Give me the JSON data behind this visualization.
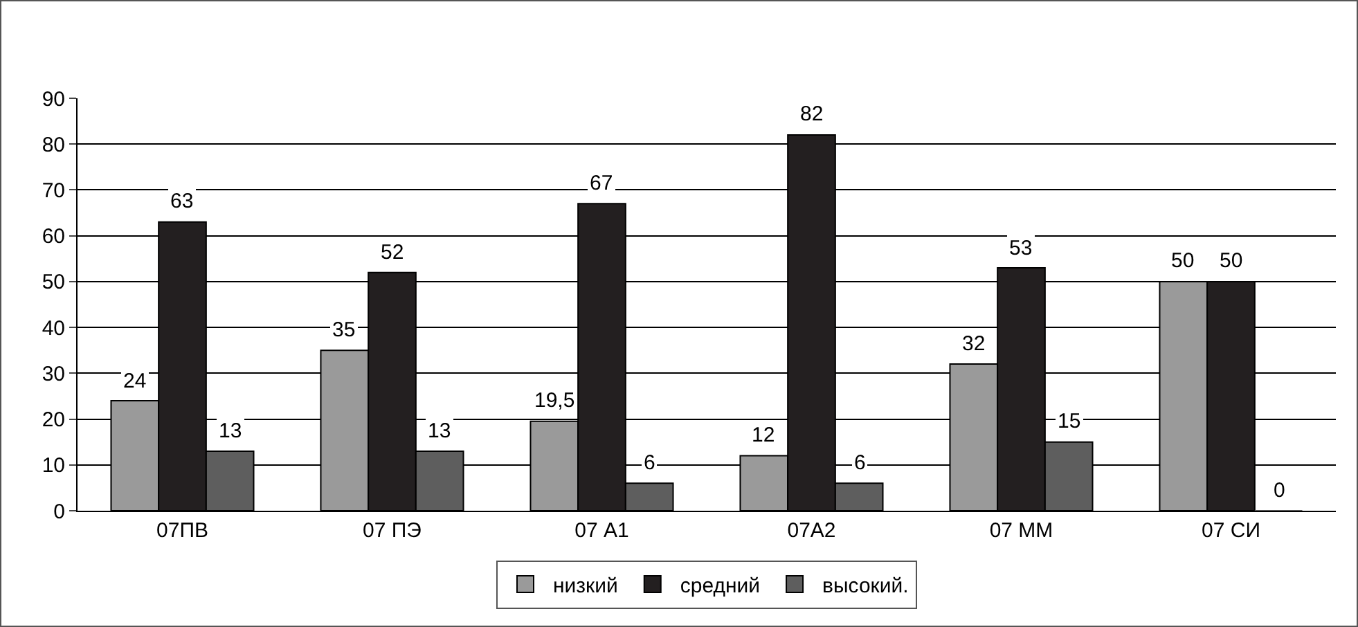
{
  "chart_data": {
    "type": "bar",
    "categories": [
      "07ПВ",
      "07 ПЭ",
      "07 А1",
      "07А2",
      "07 ММ",
      "07 СИ"
    ],
    "series": [
      {
        "name": "низкий",
        "color": "#9a9a9a",
        "values": [
          24,
          35,
          19.5,
          12,
          32,
          50
        ],
        "value_labels": [
          "24",
          "35",
          "19,5",
          "12",
          "32",
          "50"
        ]
      },
      {
        "name": "средний",
        "color": "#231f20",
        "values": [
          63,
          52,
          67,
          82,
          53,
          50
        ],
        "value_labels": [
          "63",
          "52",
          "67",
          "82",
          "53",
          "50"
        ]
      },
      {
        "name": "высокий.",
        "color": "#5e5e5e",
        "values": [
          13,
          13,
          6,
          6,
          15,
          0
        ],
        "value_labels": [
          "13",
          "13",
          "6",
          "6",
          "15",
          "0"
        ]
      }
    ],
    "ylim": [
      0,
      90
    ],
    "yticks": [
      0,
      10,
      20,
      30,
      40,
      50,
      60,
      70,
      80,
      90
    ],
    "grid": "y",
    "legend": "bottom"
  }
}
